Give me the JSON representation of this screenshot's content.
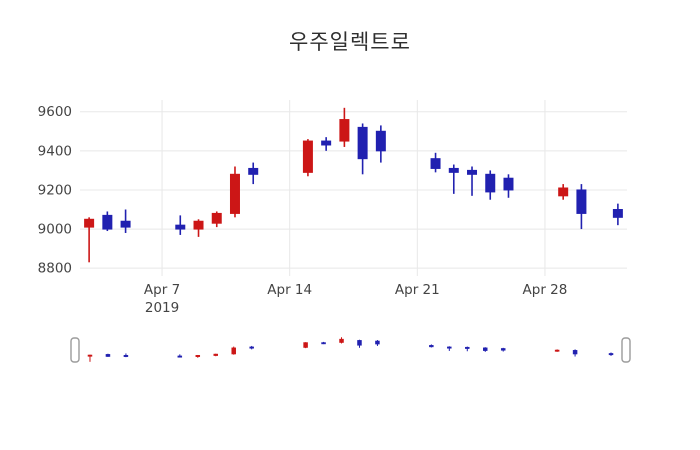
{
  "title": "우주일렉트로",
  "colors": {
    "up": "#cc1616",
    "down": "#2121b0",
    "grid": "#e8e8e8",
    "tick_text": "#444444",
    "background": "#ffffff",
    "handle_border": "#9b9b9b",
    "handle_fill": "#ffffff"
  },
  "chart_data": {
    "type": "candlestick",
    "title": "우주일렉트로",
    "legend": "none",
    "grid": "on",
    "ylim": [
      8760,
      9660
    ],
    "xlim": [
      "2019-04-02T12:00:00Z",
      "2019-05-02T12:00:00Z"
    ],
    "y_ticks": [
      8800,
      9000,
      9200,
      9400,
      9600
    ],
    "x_ticks": [
      {
        "date": "2019-04-07",
        "lines": [
          "Apr 7",
          "2019"
        ]
      },
      {
        "date": "2019-04-14",
        "lines": [
          "Apr 14"
        ]
      },
      {
        "date": "2019-04-21",
        "lines": [
          "Apr 21"
        ]
      },
      {
        "date": "2019-04-28",
        "lines": [
          "Apr 28"
        ]
      }
    ],
    "up_means": "close >= open drawn red, close < open drawn blue",
    "candles": [
      {
        "date": "2019-04-03",
        "open": 9010,
        "high": 9060,
        "low": 8830,
        "close": 9050
      },
      {
        "date": "2019-04-04",
        "open": 9070,
        "high": 9090,
        "low": 8990,
        "close": 9000
      },
      {
        "date": "2019-04-05",
        "open": 9040,
        "high": 9100,
        "low": 8980,
        "close": 9010
      },
      {
        "date": "2019-04-08",
        "open": 9020,
        "high": 9070,
        "low": 8970,
        "close": 9000
      },
      {
        "date": "2019-04-09",
        "open": 9000,
        "high": 9050,
        "low": 8960,
        "close": 9040
      },
      {
        "date": "2019-04-10",
        "open": 9030,
        "high": 9090,
        "low": 9010,
        "close": 9080
      },
      {
        "date": "2019-04-11",
        "open": 9080,
        "high": 9320,
        "low": 9060,
        "close": 9280
      },
      {
        "date": "2019-04-12",
        "open": 9310,
        "high": 9340,
        "low": 9230,
        "close": 9280
      },
      {
        "date": "2019-04-15",
        "open": 9290,
        "high": 9460,
        "low": 9270,
        "close": 9450
      },
      {
        "date": "2019-04-16",
        "open": 9450,
        "high": 9470,
        "low": 9400,
        "close": 9430
      },
      {
        "date": "2019-04-17",
        "open": 9450,
        "high": 9620,
        "low": 9420,
        "close": 9560
      },
      {
        "date": "2019-04-18",
        "open": 9520,
        "high": 9540,
        "low": 9280,
        "close": 9360
      },
      {
        "date": "2019-04-19",
        "open": 9500,
        "high": 9530,
        "low": 9340,
        "close": 9400
      },
      {
        "date": "2019-04-22",
        "open": 9360,
        "high": 9390,
        "low": 9290,
        "close": 9310
      },
      {
        "date": "2019-04-23",
        "open": 9310,
        "high": 9330,
        "low": 9180,
        "close": 9290
      },
      {
        "date": "2019-04-24",
        "open": 9300,
        "high": 9320,
        "low": 9170,
        "close": 9280
      },
      {
        "date": "2019-04-25",
        "open": 9280,
        "high": 9300,
        "low": 9150,
        "close": 9190
      },
      {
        "date": "2019-04-26",
        "open": 9260,
        "high": 9280,
        "low": 9160,
        "close": 9200
      },
      {
        "date": "2019-04-29",
        "open": 9170,
        "high": 9230,
        "low": 9150,
        "close": 9210
      },
      {
        "date": "2019-04-30",
        "open": 9200,
        "high": 9230,
        "low": 9000,
        "close": 9080
      },
      {
        "date": "2019-05-02",
        "open": 9100,
        "high": 9130,
        "low": 9020,
        "close": 9060
      }
    ]
  }
}
